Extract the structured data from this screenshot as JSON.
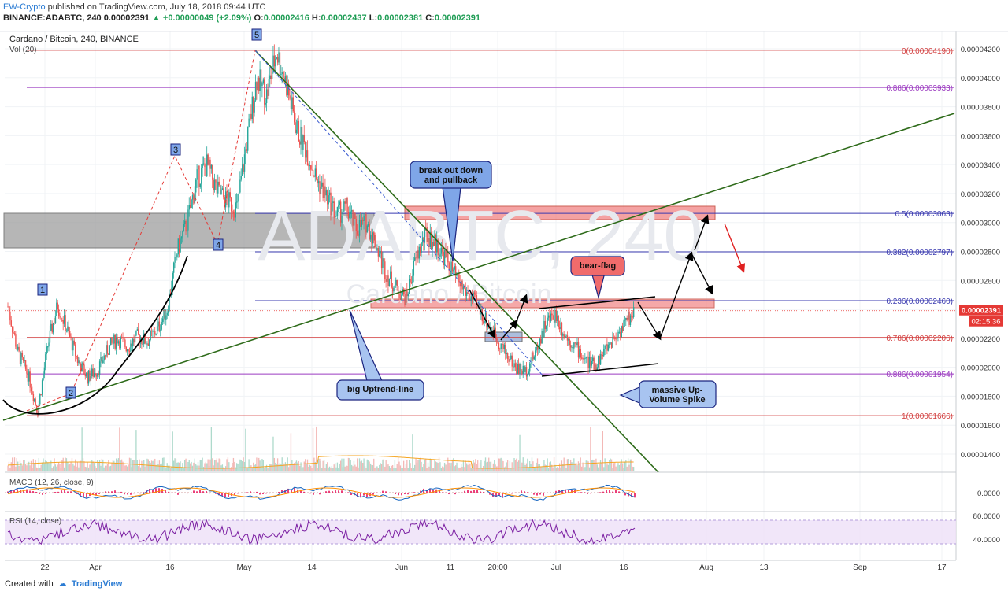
{
  "header": {
    "author": "EW-Crypto",
    "published": "published on TradingView.com, July 18, 2018 09:44 UTC",
    "symbol_line": "BINANCE:ADABTC, 240",
    "last": "0.00002391",
    "change": "+0.00000049 (+2.09%)",
    "o_label": "O:",
    "o": "0.00002416",
    "h_label": "H:",
    "h": "0.00002437",
    "l_label": "L:",
    "l": "0.00002381",
    "c_label": "C:",
    "c": "0.00002391"
  },
  "chart_title": "Cardano / Bitcoin, 240, BINANCE",
  "volume_label": "Vol (20)",
  "watermark_main": "ADABTC, 240",
  "watermark_sub": "Cardano / Bitcoin",
  "macd_label": "MACD (12, 26, close, 9)",
  "rsi_label": "RSI (14, close)",
  "footer": {
    "created": "Created with",
    "brand": "TradingView"
  },
  "price_tag": "0.00002391",
  "time_tag": "02:15:36",
  "colors": {
    "up": "#26a69a",
    "down": "#ef5350",
    "trend": "#2e6b1a",
    "fib_red": "#d23c3c",
    "fib_blue": "#3b3bb0",
    "fib_purple": "#9b3bc0",
    "macd": "#1565c0",
    "signal": "#ff8f00",
    "rsi": "#7b1fa2"
  },
  "chart_data": {
    "type": "candlestick",
    "y_range": [
      1.3e-05,
      4.25e-05
    ],
    "price_ticks": [
      "0.00004200",
      "0.00004000",
      "0.00003800",
      "0.00003600",
      "0.00003400",
      "0.00003200",
      "0.00003000",
      "0.00002800",
      "0.00002600",
      "0.00002400",
      "0.00002200",
      "0.00002000",
      "0.00001800",
      "0.00001600",
      "0.00001400"
    ],
    "macd_ticks": [
      "0.0000"
    ],
    "rsi_ticks": [
      "80.0000",
      "40.0000"
    ],
    "x_ticks": [
      "22",
      "Apr",
      "16",
      "May",
      "14",
      "Jun",
      "11",
      "20:00",
      "Jul",
      "16",
      "Aug",
      "13",
      "Sep",
      "17"
    ],
    "fib_levels": [
      {
        "label": "0(0.00004190)",
        "value": 4.19e-05,
        "color": "red"
      },
      {
        "label": "0.886(0.00003933)",
        "value": 3.933e-05,
        "color": "purple"
      },
      {
        "label": "0.5(0.00003063)",
        "value": 3.063e-05,
        "color": "blue"
      },
      {
        "label": "0.382(0.00002797)",
        "value": 2.797e-05,
        "color": "blue"
      },
      {
        "label": "0.236(0.00002460)",
        "value": 2.46e-05,
        "color": "blue"
      },
      {
        "label": "0.786(0.00002206)",
        "value": 2.206e-05,
        "color": "red"
      },
      {
        "label": "0.886(0.00001954)",
        "value": 1.954e-05,
        "color": "purple"
      },
      {
        "label": "1(0.00001666)",
        "value": 1.666e-05,
        "color": "red"
      }
    ],
    "price_path": [
      2.42e-05,
      2.1e-05,
      1.95e-05,
      1.7e-05,
      2.15e-05,
      2.43e-05,
      2.25e-05,
      2.05e-05,
      1.93e-05,
      1.98e-05,
      2.12e-05,
      2.2e-05,
      2.14e-05,
      2.21e-05,
      2.18e-05,
      2.26e-05,
      2.4e-05,
      2.8e-05,
      3e-05,
      3.3e-05,
      3.4e-05,
      3.22e-05,
      3.15e-05,
      3.1e-05,
      3.55e-05,
      4e-05,
      3.88e-05,
      4.18e-05,
      3.95e-05,
      3.65e-05,
      3.5e-05,
      3.3e-05,
      3.18e-05,
      3.05e-05,
      3.1e-05,
      2.96e-05,
      3e-05,
      2.85e-05,
      2.65e-05,
      2.55e-05,
      2.48e-05,
      2.75e-05,
      2.92e-05,
      2.85e-05,
      2.75e-05,
      2.62e-05,
      2.52e-05,
      2.44e-05,
      2.33e-05,
      2.22e-05,
      2.1e-05,
      2e-05,
      1.97e-05,
      2.1e-05,
      2.3e-05,
      2.37e-05,
      2.22e-05,
      2.15e-05,
      2.05e-05,
      2.01e-05,
      2.12e-05,
      2.21e-05,
      2.3e-05,
      2.39e-05
    ],
    "wave_labels": [
      "1",
      "2",
      "3",
      "4",
      "5"
    ],
    "annotations": [
      {
        "text": "break out down and pullback"
      },
      {
        "text": "bear-flag"
      },
      {
        "text": "big Uptrend-line"
      },
      {
        "text": "massive Up-Volume Spike"
      }
    ]
  }
}
